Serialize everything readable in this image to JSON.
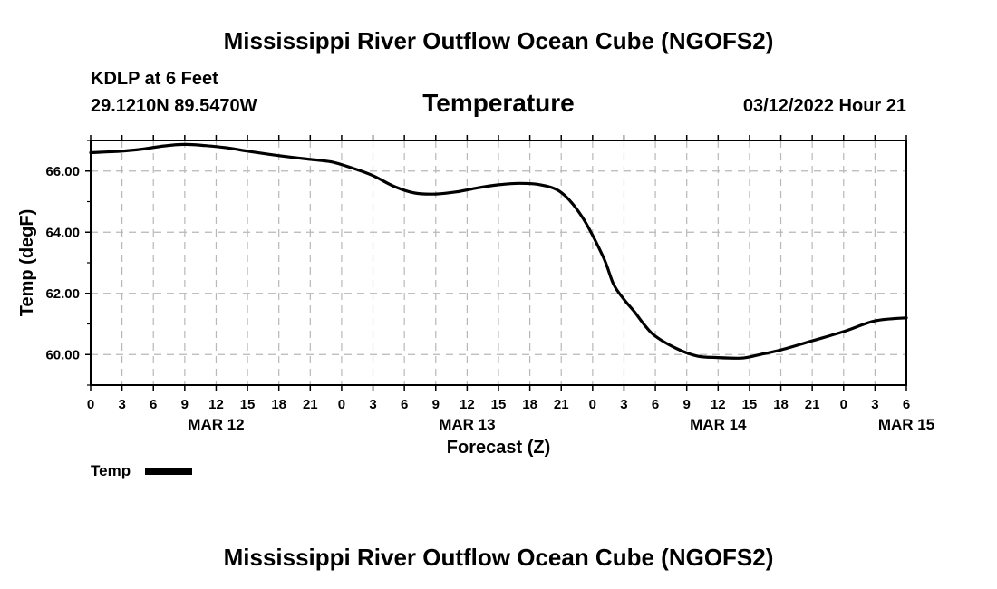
{
  "header": {
    "title": "Mississippi River Outflow Ocean Cube (NGOFS2)",
    "station": "KDLP at 6 Feet",
    "coords": "29.1210N  89.5470W",
    "datetime": "03/12/2022 Hour 21"
  },
  "footer": {
    "title": "Mississippi River Outflow Ocean Cube (NGOFS2)"
  },
  "chart_data": {
    "type": "line",
    "title": "Temperature",
    "xlabel": "Forecast (Z)",
    "ylabel": "Temp (degF)",
    "grid": true,
    "xlim": [
      0,
      78
    ],
    "ylim": [
      59.0,
      67.0
    ],
    "x_unit": "hours from MAR 12 00Z",
    "x_ticks": [
      0,
      3,
      6,
      9,
      12,
      15,
      18,
      21,
      24,
      27,
      30,
      33,
      36,
      39,
      42,
      45,
      48,
      51,
      54,
      57,
      60,
      63,
      66,
      69,
      72,
      75,
      78
    ],
    "x_tick_labels": [
      "0",
      "3",
      "6",
      "9",
      "12",
      "15",
      "18",
      "21",
      "0",
      "3",
      "6",
      "9",
      "12",
      "15",
      "18",
      "21",
      "0",
      "3",
      "6",
      "9",
      "12",
      "15",
      "18",
      "21",
      "0",
      "3",
      "6"
    ],
    "date_labels": [
      {
        "x": 12,
        "label": "MAR 12"
      },
      {
        "x": 36,
        "label": "MAR 13"
      },
      {
        "x": 60,
        "label": "MAR 14"
      },
      {
        "x": 78,
        "label": "MAR 15"
      }
    ],
    "y_ticks": [
      60.0,
      62.0,
      64.0,
      66.0
    ],
    "y_tick_labels": [
      "60.00",
      "62.00",
      "64.00",
      "66.00"
    ],
    "legend": {
      "label": "Temp",
      "placement": "bottom-left"
    },
    "series": [
      {
        "name": "Temp",
        "x": [
          0,
          3,
          5,
          7,
          9,
          11,
          13,
          15,
          17,
          19,
          21,
          23,
          25,
          27,
          29,
          31,
          33,
          35,
          37,
          39,
          41,
          43,
          45,
          47,
          49,
          50,
          51,
          52,
          53,
          54,
          56,
          58,
          60,
          62,
          63,
          64,
          66,
          69,
          72,
          75,
          78
        ],
        "y": [
          66.6,
          66.65,
          66.72,
          66.82,
          66.87,
          66.83,
          66.76,
          66.65,
          66.55,
          66.46,
          66.38,
          66.3,
          66.1,
          65.85,
          65.5,
          65.28,
          65.25,
          65.32,
          65.45,
          65.55,
          65.6,
          65.55,
          65.3,
          64.5,
          63.2,
          62.3,
          61.8,
          61.4,
          60.95,
          60.6,
          60.2,
          59.95,
          59.9,
          59.88,
          59.92,
          60.0,
          60.15,
          60.45,
          60.75,
          61.1,
          61.2
        ]
      }
    ]
  }
}
